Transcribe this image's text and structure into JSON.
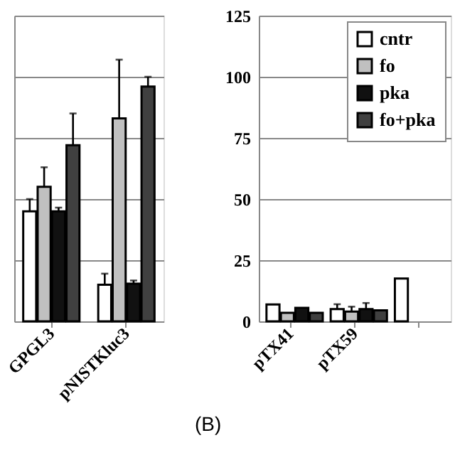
{
  "chart_data": [
    {
      "type": "bar",
      "categories": [
        "GPGL3",
        "pNISTKluc3"
      ],
      "series": [
        {
          "color": "#ffffff",
          "values": [
            45,
            15
          ],
          "errors": [
            5,
            4.5
          ]
        },
        {
          "color": "#c0c0c0",
          "values": [
            55,
            83
          ],
          "errors": [
            8,
            24
          ]
        },
        {
          "color": "#111111",
          "values": [
            45,
            15.4
          ],
          "errors": [
            1.5,
            1.3
          ]
        },
        {
          "color": "#404040",
          "values": [
            72,
            96
          ],
          "errors": [
            13,
            4
          ]
        }
      ],
      "ylim": [
        0,
        125
      ],
      "yticks": [
        {
          "value": 0,
          "label": null
        },
        {
          "value": 25,
          "label": null
        },
        {
          "value": 50,
          "label": null
        },
        {
          "value": 75,
          "label": null
        },
        {
          "value": 100,
          "label": null
        },
        {
          "value": 125,
          "label": null
        }
      ],
      "tick_labels": "x",
      "grid": "y",
      "legend": false
    },
    {
      "type": "bar",
      "categories": [
        "pTX41",
        "pTX59",
        null
      ],
      "series": [
        {
          "name": "cntr",
          "color": "#ffffff",
          "values": [
            6.9,
            5,
            17.5
          ],
          "errors": [
            null,
            2,
            null
          ]
        },
        {
          "name": "fo",
          "color": "#c0c0c0",
          "values": [
            3.5,
            4,
            null
          ],
          "errors": [
            null,
            2,
            null
          ]
        },
        {
          "name": "pka",
          "color": "#111111",
          "values": [
            5.5,
            5,
            null
          ],
          "errors": [
            null,
            2.5,
            null
          ]
        },
        {
          "name": "fo+pka",
          "color": "#404040",
          "values": [
            3.5,
            4.5,
            null
          ],
          "errors": [
            null,
            null,
            null
          ]
        }
      ],
      "ylim": [
        0,
        125
      ],
      "yticks": [
        0,
        25,
        50,
        75,
        100,
        125
      ],
      "grid": "y",
      "legend": "top right",
      "annotations": [
        "(B)"
      ]
    }
  ]
}
